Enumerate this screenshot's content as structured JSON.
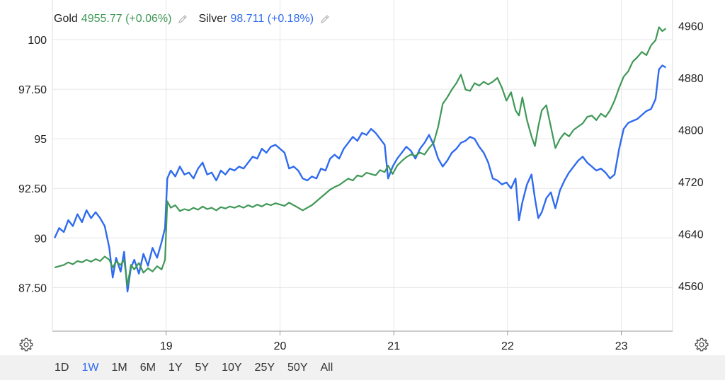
{
  "legend": {
    "gold": {
      "name": "Gold",
      "value": "4955.77 (+0.06%)"
    },
    "silver": {
      "name": "Silver",
      "value": "98.711 (+0.18%)"
    }
  },
  "range_buttons": [
    "1D",
    "1W",
    "1M",
    "6M",
    "1Y",
    "5Y",
    "10Y",
    "25Y",
    "50Y",
    "All"
  ],
  "active_range": "1W",
  "colors": {
    "gold": "#3f9856",
    "silver": "#2f6bef",
    "grid": "#e6e6e6"
  },
  "icons": {
    "edit": "pencil-icon",
    "settings": "gear-icon"
  },
  "chart_data": {
    "type": "line",
    "grid": true,
    "legend_position": "top-left",
    "x_ticks": [
      {
        "label": "19",
        "x": 19.0
      },
      {
        "label": "20",
        "x": 20.0
      },
      {
        "label": "21",
        "x": 21.0
      },
      {
        "label": "22",
        "x": 22.0
      },
      {
        "label": "23",
        "x": 23.0
      }
    ],
    "xlim": [
      18.0,
      23.45
    ],
    "y_left": {
      "ticks": [
        100,
        97.5,
        95,
        92.5,
        90,
        87.5
      ],
      "tick_labels": [
        "100",
        "97.50",
        "95",
        "92.50",
        "90",
        "87.50"
      ],
      "lim": [
        85.3,
        102.0
      ]
    },
    "y_right": {
      "ticks": [
        4960,
        4880,
        4800,
        4720,
        4640,
        4560
      ],
      "tick_labels": [
        "4960",
        "4880",
        "4800",
        "4720",
        "4640",
        "4560"
      ],
      "lim": [
        4490,
        5000
      ]
    },
    "series": [
      {
        "name": "Silver",
        "axis": "left",
        "points": [
          [
            18.02,
            90.0
          ],
          [
            18.06,
            90.5
          ],
          [
            18.1,
            90.3
          ],
          [
            18.14,
            90.9
          ],
          [
            18.18,
            90.6
          ],
          [
            18.22,
            91.2
          ],
          [
            18.26,
            90.8
          ],
          [
            18.3,
            91.4
          ],
          [
            18.34,
            91.0
          ],
          [
            18.38,
            91.3
          ],
          [
            18.42,
            91.0
          ],
          [
            18.46,
            90.6
          ],
          [
            18.5,
            89.5
          ],
          [
            18.53,
            88.0
          ],
          [
            18.56,
            89.0
          ],
          [
            18.6,
            88.3
          ],
          [
            18.63,
            89.3
          ],
          [
            18.66,
            87.3
          ],
          [
            18.69,
            88.5
          ],
          [
            18.72,
            88.9
          ],
          [
            18.76,
            88.2
          ],
          [
            18.8,
            89.2
          ],
          [
            18.84,
            88.6
          ],
          [
            18.88,
            89.5
          ],
          [
            18.92,
            89.0
          ],
          [
            18.96,
            89.8
          ],
          [
            18.99,
            90.5
          ],
          [
            19.01,
            93.0
          ],
          [
            19.04,
            93.4
          ],
          [
            19.08,
            93.1
          ],
          [
            19.12,
            93.6
          ],
          [
            19.16,
            93.2
          ],
          [
            19.2,
            93.3
          ],
          [
            19.24,
            93.0
          ],
          [
            19.28,
            93.5
          ],
          [
            19.32,
            93.8
          ],
          [
            19.36,
            93.2
          ],
          [
            19.4,
            93.3
          ],
          [
            19.44,
            92.9
          ],
          [
            19.48,
            93.4
          ],
          [
            19.52,
            93.2
          ],
          [
            19.56,
            93.5
          ],
          [
            19.6,
            93.4
          ],
          [
            19.64,
            93.6
          ],
          [
            19.68,
            93.5
          ],
          [
            19.72,
            93.8
          ],
          [
            19.76,
            94.1
          ],
          [
            19.8,
            94.0
          ],
          [
            19.84,
            94.5
          ],
          [
            19.88,
            94.3
          ],
          [
            19.92,
            94.6
          ],
          [
            19.96,
            94.7
          ],
          [
            20.0,
            94.5
          ],
          [
            20.04,
            94.3
          ],
          [
            20.08,
            93.5
          ],
          [
            20.12,
            93.6
          ],
          [
            20.16,
            93.4
          ],
          [
            20.2,
            93.0
          ],
          [
            20.24,
            92.9
          ],
          [
            20.28,
            93.1
          ],
          [
            20.32,
            93.0
          ],
          [
            20.36,
            93.5
          ],
          [
            20.4,
            93.4
          ],
          [
            20.44,
            94.0
          ],
          [
            20.48,
            94.2
          ],
          [
            20.52,
            94.0
          ],
          [
            20.56,
            94.5
          ],
          [
            20.6,
            94.8
          ],
          [
            20.64,
            95.1
          ],
          [
            20.68,
            94.9
          ],
          [
            20.72,
            95.3
          ],
          [
            20.76,
            95.2
          ],
          [
            20.8,
            95.5
          ],
          [
            20.84,
            95.3
          ],
          [
            20.88,
            95.0
          ],
          [
            20.92,
            94.7
          ],
          [
            20.95,
            93.0
          ],
          [
            20.99,
            93.6
          ],
          [
            21.03,
            94.0
          ],
          [
            21.07,
            94.3
          ],
          [
            21.11,
            94.6
          ],
          [
            21.15,
            94.4
          ],
          [
            21.19,
            94.0
          ],
          [
            21.23,
            94.5
          ],
          [
            21.27,
            94.8
          ],
          [
            21.31,
            95.2
          ],
          [
            21.35,
            94.7
          ],
          [
            21.39,
            94.0
          ],
          [
            21.43,
            93.6
          ],
          [
            21.47,
            93.9
          ],
          [
            21.51,
            94.3
          ],
          [
            21.55,
            94.5
          ],
          [
            21.59,
            94.8
          ],
          [
            21.63,
            94.9
          ],
          [
            21.67,
            95.1
          ],
          [
            21.71,
            95.0
          ],
          [
            21.75,
            94.6
          ],
          [
            21.79,
            94.3
          ],
          [
            21.83,
            93.8
          ],
          [
            21.87,
            93.0
          ],
          [
            21.91,
            92.9
          ],
          [
            21.95,
            92.7
          ],
          [
            21.99,
            92.8
          ],
          [
            22.03,
            92.5
          ],
          [
            22.07,
            93.0
          ],
          [
            22.1,
            90.9
          ],
          [
            22.13,
            91.8
          ],
          [
            22.17,
            92.7
          ],
          [
            22.21,
            93.2
          ],
          [
            22.24,
            92.0
          ],
          [
            22.27,
            91.0
          ],
          [
            22.3,
            91.3
          ],
          [
            22.34,
            92.0
          ],
          [
            22.38,
            92.3
          ],
          [
            22.42,
            91.5
          ],
          [
            22.46,
            92.4
          ],
          [
            22.5,
            92.9
          ],
          [
            22.54,
            93.3
          ],
          [
            22.58,
            93.6
          ],
          [
            22.62,
            93.9
          ],
          [
            22.66,
            94.1
          ],
          [
            22.7,
            93.8
          ],
          [
            22.74,
            93.6
          ],
          [
            22.78,
            93.4
          ],
          [
            22.82,
            93.5
          ],
          [
            22.86,
            93.3
          ],
          [
            22.9,
            93.0
          ],
          [
            22.94,
            93.2
          ],
          [
            22.98,
            94.5
          ],
          [
            23.02,
            95.5
          ],
          [
            23.06,
            95.8
          ],
          [
            23.1,
            95.9
          ],
          [
            23.14,
            96.0
          ],
          [
            23.18,
            96.2
          ],
          [
            23.22,
            96.4
          ],
          [
            23.26,
            96.5
          ],
          [
            23.3,
            97.0
          ],
          [
            23.33,
            98.5
          ],
          [
            23.36,
            98.7
          ],
          [
            23.39,
            98.6
          ]
        ]
      },
      {
        "name": "Gold",
        "axis": "right",
        "points": [
          [
            18.02,
            4588
          ],
          [
            18.06,
            4590
          ],
          [
            18.1,
            4592
          ],
          [
            18.14,
            4596
          ],
          [
            18.18,
            4593
          ],
          [
            18.22,
            4598
          ],
          [
            18.26,
            4596
          ],
          [
            18.3,
            4600
          ],
          [
            18.34,
            4597
          ],
          [
            18.38,
            4601
          ],
          [
            18.42,
            4598
          ],
          [
            18.46,
            4605
          ],
          [
            18.5,
            4600
          ],
          [
            18.53,
            4588
          ],
          [
            18.56,
            4597
          ],
          [
            18.6,
            4592
          ],
          [
            18.63,
            4600
          ],
          [
            18.66,
            4560
          ],
          [
            18.69,
            4592
          ],
          [
            18.72,
            4585
          ],
          [
            18.76,
            4595
          ],
          [
            18.8,
            4580
          ],
          [
            18.84,
            4587
          ],
          [
            18.88,
            4582
          ],
          [
            18.92,
            4590
          ],
          [
            18.96,
            4585
          ],
          [
            18.99,
            4600
          ],
          [
            19.01,
            4690
          ],
          [
            19.04,
            4680
          ],
          [
            19.08,
            4684
          ],
          [
            19.12,
            4675
          ],
          [
            19.16,
            4678
          ],
          [
            19.2,
            4676
          ],
          [
            19.24,
            4680
          ],
          [
            19.28,
            4677
          ],
          [
            19.32,
            4682
          ],
          [
            19.36,
            4678
          ],
          [
            19.4,
            4680
          ],
          [
            19.44,
            4676
          ],
          [
            19.48,
            4681
          ],
          [
            19.52,
            4679
          ],
          [
            19.56,
            4682
          ],
          [
            19.6,
            4680
          ],
          [
            19.64,
            4683
          ],
          [
            19.68,
            4680
          ],
          [
            19.72,
            4684
          ],
          [
            19.76,
            4681
          ],
          [
            19.8,
            4685
          ],
          [
            19.84,
            4682
          ],
          [
            19.88,
            4686
          ],
          [
            19.92,
            4684
          ],
          [
            19.96,
            4687
          ],
          [
            20.0,
            4685
          ],
          [
            20.04,
            4683
          ],
          [
            20.08,
            4688
          ],
          [
            20.12,
            4684
          ],
          [
            20.16,
            4680
          ],
          [
            20.2,
            4676
          ],
          [
            20.24,
            4680
          ],
          [
            20.28,
            4684
          ],
          [
            20.32,
            4690
          ],
          [
            20.36,
            4696
          ],
          [
            20.4,
            4702
          ],
          [
            20.44,
            4708
          ],
          [
            20.48,
            4712
          ],
          [
            20.52,
            4715
          ],
          [
            20.56,
            4720
          ],
          [
            20.6,
            4725
          ],
          [
            20.64,
            4722
          ],
          [
            20.68,
            4730
          ],
          [
            20.72,
            4728
          ],
          [
            20.76,
            4734
          ],
          [
            20.8,
            4732
          ],
          [
            20.84,
            4730
          ],
          [
            20.88,
            4738
          ],
          [
            20.92,
            4735
          ],
          [
            20.95,
            4745
          ],
          [
            20.99,
            4732
          ],
          [
            21.03,
            4745
          ],
          [
            21.07,
            4752
          ],
          [
            21.11,
            4758
          ],
          [
            21.15,
            4762
          ],
          [
            21.19,
            4760
          ],
          [
            21.23,
            4765
          ],
          [
            21.27,
            4762
          ],
          [
            21.31,
            4772
          ],
          [
            21.35,
            4780
          ],
          [
            21.39,
            4805
          ],
          [
            21.43,
            4840
          ],
          [
            21.47,
            4850
          ],
          [
            21.51,
            4862
          ],
          [
            21.55,
            4872
          ],
          [
            21.59,
            4885
          ],
          [
            21.63,
            4862
          ],
          [
            21.67,
            4860
          ],
          [
            21.71,
            4872
          ],
          [
            21.75,
            4868
          ],
          [
            21.79,
            4874
          ],
          [
            21.83,
            4870
          ],
          [
            21.87,
            4874
          ],
          [
            21.91,
            4880
          ],
          [
            21.95,
            4865
          ],
          [
            21.99,
            4845
          ],
          [
            22.03,
            4858
          ],
          [
            22.07,
            4830
          ],
          [
            22.1,
            4822
          ],
          [
            22.13,
            4850
          ],
          [
            22.17,
            4815
          ],
          [
            22.21,
            4790
          ],
          [
            22.24,
            4775
          ],
          [
            22.27,
            4805
          ],
          [
            22.3,
            4830
          ],
          [
            22.34,
            4838
          ],
          [
            22.38,
            4805
          ],
          [
            22.42,
            4772
          ],
          [
            22.46,
            4786
          ],
          [
            22.5,
            4795
          ],
          [
            22.54,
            4790
          ],
          [
            22.58,
            4800
          ],
          [
            22.62,
            4805
          ],
          [
            22.66,
            4810
          ],
          [
            22.7,
            4820
          ],
          [
            22.74,
            4822
          ],
          [
            22.78,
            4815
          ],
          [
            22.82,
            4825
          ],
          [
            22.86,
            4820
          ],
          [
            22.9,
            4830
          ],
          [
            22.94,
            4845
          ],
          [
            22.98,
            4865
          ],
          [
            23.02,
            4882
          ],
          [
            23.06,
            4890
          ],
          [
            23.1,
            4905
          ],
          [
            23.14,
            4912
          ],
          [
            23.18,
            4920
          ],
          [
            23.22,
            4915
          ],
          [
            23.26,
            4930
          ],
          [
            23.3,
            4938
          ],
          [
            23.33,
            4958
          ],
          [
            23.36,
            4952
          ],
          [
            23.39,
            4956
          ]
        ]
      }
    ]
  }
}
